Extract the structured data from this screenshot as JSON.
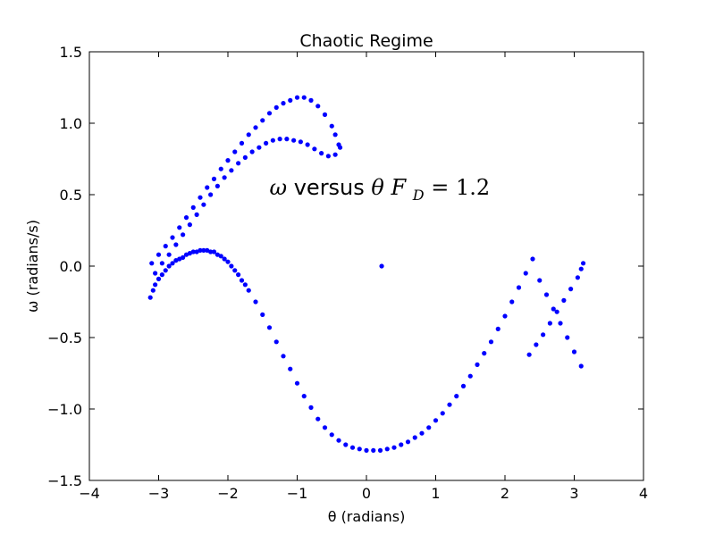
{
  "chart_data": {
    "type": "scatter",
    "title": "Chaotic Regime",
    "xlabel": "θ (radians)",
    "ylabel": "ω (radians/s)",
    "xlim": [
      -4,
      4
    ],
    "ylim": [
      -1.5,
      1.5
    ],
    "x_ticks": [
      -4,
      -3,
      -2,
      -1,
      0,
      1,
      2,
      3,
      4
    ],
    "y_ticks": [
      -1.5,
      -1.0,
      -0.5,
      0.0,
      0.5,
      1.0,
      1.5
    ],
    "x_tick_labels": [
      "−4",
      "−3",
      "−2",
      "−1",
      "0",
      "1",
      "2",
      "3",
      "4"
    ],
    "y_tick_labels": [
      "−1.5",
      "−1.0",
      "−0.5",
      "0.0",
      "0.5",
      "1.0",
      "1.5"
    ],
    "grid": false,
    "annotation": {
      "text": "ω versus θ F_D = 1.2",
      "omega": "ω",
      "versus": " versus ",
      "theta": "θ",
      "F": "F",
      "D": "D",
      "eq": " = 1.2",
      "x": -1.4,
      "y": 0.55
    },
    "marker_color": "#0000ff",
    "series": [
      {
        "x": [
          -3.12,
          -3.08,
          -3.05,
          -3.0,
          -2.95,
          -2.9,
          -2.85,
          -2.8,
          -2.75,
          -2.7,
          -2.65,
          -2.6,
          -2.55,
          -2.5,
          -2.45,
          -2.4,
          -2.35,
          -2.3,
          -2.25,
          -2.2,
          -2.15,
          -2.1,
          -2.05,
          -2.0,
          -1.95,
          -1.9,
          -1.85,
          -1.8,
          -1.75,
          -1.7,
          -1.6,
          -1.5,
          -1.4,
          -1.3,
          -1.2,
          -1.1,
          -1.0,
          -0.9,
          -0.8,
          -0.7,
          -0.6,
          -0.5,
          -0.4,
          -0.3,
          -0.2,
          -0.1,
          0.0,
          0.1,
          0.2,
          0.3,
          0.4,
          0.5,
          0.6,
          0.7,
          0.8,
          0.9,
          1.0,
          1.1,
          1.2,
          1.3,
          1.4,
          1.5,
          1.6,
          1.7,
          1.8,
          1.9,
          2.0,
          2.1,
          2.2,
          2.3,
          2.4,
          2.5,
          2.6,
          2.7,
          2.8,
          2.9,
          3.0,
          3.1
        ],
        "y": [
          -0.22,
          -0.17,
          -0.13,
          -0.09,
          -0.06,
          -0.03,
          -0.0,
          0.02,
          0.04,
          0.05,
          0.06,
          0.08,
          0.09,
          0.1,
          0.1,
          0.11,
          0.11,
          0.11,
          0.1,
          0.1,
          0.08,
          0.07,
          0.05,
          0.03,
          0.0,
          -0.03,
          -0.06,
          -0.1,
          -0.13,
          -0.17,
          -0.25,
          -0.34,
          -0.43,
          -0.53,
          -0.63,
          -0.72,
          -0.82,
          -0.91,
          -0.99,
          -1.07,
          -1.13,
          -1.18,
          -1.22,
          -1.25,
          -1.27,
          -1.28,
          -1.29,
          -1.29,
          -1.29,
          -1.28,
          -1.27,
          -1.25,
          -1.23,
          -1.2,
          -1.17,
          -1.13,
          -1.08,
          -1.03,
          -0.97,
          -0.91,
          -0.84,
          -0.77,
          -0.69,
          -0.61,
          -0.53,
          -0.44,
          -0.35,
          -0.25,
          -0.15,
          -0.05,
          0.05,
          -0.1,
          -0.2,
          -0.3,
          -0.4,
          -0.5,
          -0.6,
          -0.7
        ]
      },
      {
        "x": [
          2.35,
          2.45,
          2.55,
          2.65,
          2.75,
          2.85,
          2.95,
          3.05,
          3.1,
          3.13
        ],
        "y": [
          -0.62,
          -0.55,
          -0.48,
          -0.4,
          -0.32,
          -0.24,
          -0.16,
          -0.08,
          -0.02,
          0.02
        ]
      },
      {
        "x": [
          -3.1,
          -3.0,
          -2.9,
          -2.8,
          -2.7,
          -2.6,
          -2.5,
          -2.4,
          -2.3,
          -2.2,
          -2.1,
          -2.0,
          -1.9,
          -1.8,
          -1.7,
          -1.6,
          -1.5,
          -1.4,
          -1.3,
          -1.2,
          -1.1,
          -1.0,
          -0.9,
          -0.8,
          -0.7,
          -0.6,
          -0.5,
          -0.45,
          -0.4
        ],
        "y": [
          0.02,
          0.08,
          0.14,
          0.2,
          0.27,
          0.34,
          0.41,
          0.48,
          0.55,
          0.61,
          0.68,
          0.74,
          0.8,
          0.86,
          0.92,
          0.97,
          1.02,
          1.07,
          1.11,
          1.14,
          1.16,
          1.18,
          1.18,
          1.16,
          1.12,
          1.06,
          0.98,
          0.92,
          0.85
        ]
      },
      {
        "x": [
          -3.05,
          -2.95,
          -2.85,
          -2.75,
          -2.65,
          -2.55,
          -2.45,
          -2.35,
          -2.25,
          -2.15,
          -2.05,
          -1.95,
          -1.85,
          -1.75,
          -1.65,
          -1.55,
          -1.45,
          -1.35,
          -1.25,
          -1.15,
          -1.05,
          -0.95,
          -0.85,
          -0.75,
          -0.65,
          -0.55,
          -0.45,
          -0.38
        ],
        "y": [
          -0.05,
          0.02,
          0.08,
          0.15,
          0.22,
          0.29,
          0.36,
          0.43,
          0.5,
          0.56,
          0.62,
          0.67,
          0.72,
          0.76,
          0.8,
          0.83,
          0.86,
          0.88,
          0.89,
          0.89,
          0.88,
          0.87,
          0.85,
          0.82,
          0.79,
          0.77,
          0.78,
          0.83
        ]
      },
      {
        "x": [
          0.22
        ],
        "y": [
          0.0
        ]
      }
    ]
  }
}
